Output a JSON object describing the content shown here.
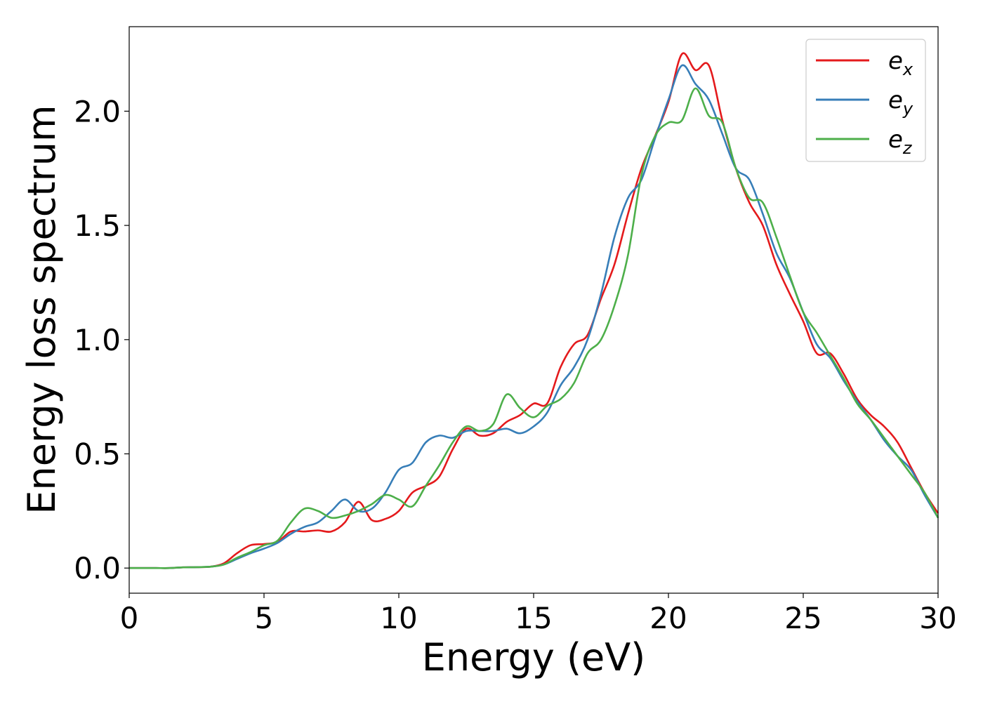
{
  "chart_data": {
    "type": "line",
    "xlabel": "Energy (eV)",
    "ylabel": "Energy loss spectrum",
    "xlim": [
      0,
      30
    ],
    "ylim": [
      -0.11,
      2.37
    ],
    "xticks": [
      "0",
      "5",
      "10",
      "15",
      "20",
      "25",
      "30"
    ],
    "yticks": [
      "0.0",
      "0.5",
      "1.0",
      "1.5",
      "2.0"
    ],
    "grid": false,
    "legend_position": "top-right",
    "x": [
      0,
      0.5,
      1,
      1.5,
      2,
      2.5,
      3,
      3.5,
      4,
      4.5,
      5,
      5.5,
      6,
      6.5,
      7,
      7.5,
      8,
      8.5,
      9,
      9.5,
      10,
      10.5,
      11,
      11.5,
      12,
      12.5,
      13,
      13.5,
      14,
      14.5,
      15,
      15.5,
      16,
      16.5,
      17,
      17.5,
      18,
      18.5,
      19,
      19.5,
      20,
      20.5,
      21,
      21.5,
      22,
      22.5,
      23,
      23.5,
      24,
      24.5,
      25,
      25.5,
      26,
      26.5,
      27,
      27.5,
      28,
      28.5,
      29,
      29.5,
      30
    ],
    "series": [
      {
        "name": "e",
        "subscript": "x",
        "color": "#e41a1c",
        "values": [
          0.0,
          0.0,
          0.0,
          0.0,
          0.003,
          0.004,
          0.006,
          0.02,
          0.065,
          0.1,
          0.105,
          0.115,
          0.16,
          0.16,
          0.165,
          0.16,
          0.2,
          0.29,
          0.21,
          0.215,
          0.25,
          0.33,
          0.36,
          0.4,
          0.52,
          0.61,
          0.58,
          0.59,
          0.64,
          0.67,
          0.72,
          0.72,
          0.88,
          0.98,
          1.02,
          1.18,
          1.33,
          1.55,
          1.75,
          1.89,
          2.04,
          2.25,
          2.18,
          2.2,
          1.96,
          1.75,
          1.6,
          1.5,
          1.33,
          1.2,
          1.08,
          0.94,
          0.94,
          0.85,
          0.74,
          0.67,
          0.62,
          0.55,
          0.44,
          0.33,
          0.24
        ]
      },
      {
        "name": "e",
        "subscript": "y",
        "color": "#377eb8",
        "values": [
          0.0,
          0.0,
          0.0,
          0.0,
          0.003,
          0.004,
          0.006,
          0.015,
          0.04,
          0.065,
          0.085,
          0.11,
          0.15,
          0.18,
          0.2,
          0.25,
          0.3,
          0.25,
          0.26,
          0.33,
          0.43,
          0.46,
          0.55,
          0.58,
          0.57,
          0.6,
          0.6,
          0.6,
          0.61,
          0.59,
          0.62,
          0.68,
          0.8,
          0.88,
          1.0,
          1.2,
          1.45,
          1.62,
          1.7,
          1.88,
          2.05,
          2.2,
          2.12,
          2.05,
          1.9,
          1.75,
          1.7,
          1.55,
          1.38,
          1.27,
          1.12,
          0.98,
          0.92,
          0.82,
          0.73,
          0.65,
          0.56,
          0.49,
          0.43,
          0.32,
          0.22
        ]
      },
      {
        "name": "e",
        "subscript": "z",
        "color": "#4daf4a",
        "values": [
          0.0,
          0.0,
          0.0,
          0.0,
          0.003,
          0.004,
          0.006,
          0.015,
          0.045,
          0.07,
          0.1,
          0.12,
          0.2,
          0.26,
          0.25,
          0.22,
          0.23,
          0.25,
          0.28,
          0.32,
          0.3,
          0.27,
          0.36,
          0.45,
          0.55,
          0.62,
          0.6,
          0.63,
          0.76,
          0.7,
          0.66,
          0.71,
          0.74,
          0.81,
          0.94,
          1.0,
          1.15,
          1.37,
          1.72,
          1.89,
          1.95,
          1.96,
          2.1,
          1.98,
          1.95,
          1.75,
          1.62,
          1.6,
          1.45,
          1.28,
          1.12,
          1.03,
          0.93,
          0.83,
          0.72,
          0.65,
          0.57,
          0.49,
          0.41,
          0.33,
          0.22
        ]
      }
    ]
  }
}
